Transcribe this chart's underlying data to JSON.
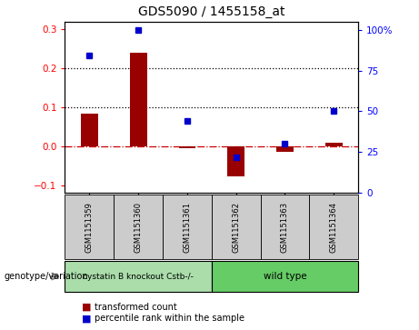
{
  "title": "GDS5090 / 1455158_at",
  "samples": [
    "GSM1151359",
    "GSM1151360",
    "GSM1151361",
    "GSM1151362",
    "GSM1151363",
    "GSM1151364"
  ],
  "red_values": [
    0.083,
    0.24,
    -0.005,
    -0.078,
    -0.015,
    0.01
  ],
  "blue_values_pct": [
    84,
    100,
    44,
    22,
    30,
    50
  ],
  "ylim_left": [
    -0.12,
    0.32
  ],
  "ylim_right": [
    0,
    105
  ],
  "yticks_left": [
    -0.1,
    0.0,
    0.1,
    0.2,
    0.3
  ],
  "yticks_right": [
    0,
    25,
    50,
    75,
    100
  ],
  "yticklabels_right": [
    "0",
    "25",
    "50",
    "75",
    "100%"
  ],
  "hlines": [
    0.1,
    0.2
  ],
  "zero_line_color": "#cc0000",
  "bar_color": "#990000",
  "dot_color": "#0000cc",
  "group1_label": "cystatin B knockout Cstb-/-",
  "group2_label": "wild type",
  "group1_color": "#aaddaa",
  "group2_color": "#66cc66",
  "group_row_label": "genotype/variation",
  "legend_red": "transformed count",
  "legend_blue": "percentile rank within the sample",
  "tick_fontsize": 7.5,
  "title_fontsize": 10,
  "sample_cell_color": "#cccccc",
  "bar_width": 0.35
}
